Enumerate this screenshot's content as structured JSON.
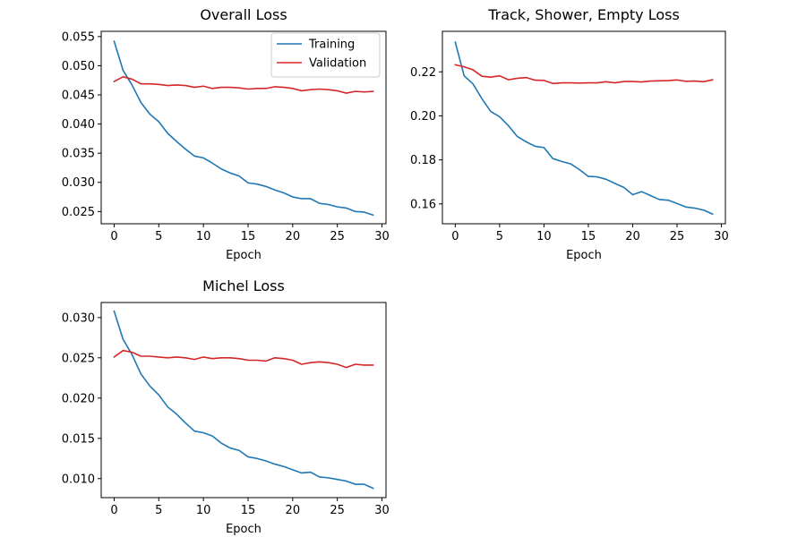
{
  "chart_data": [
    {
      "type": "line",
      "title": "Overall Loss",
      "xlabel": "Epoch",
      "ylabel": "",
      "xlim": [
        -1.45,
        30.45
      ],
      "ylim": [
        0.0229,
        0.0559
      ],
      "xticks": [
        0,
        5,
        10,
        15,
        20,
        25,
        30
      ],
      "xtick_labels": [
        "0",
        "5",
        "10",
        "15",
        "20",
        "25",
        "30"
      ],
      "yticks": [
        0.025,
        0.03,
        0.035,
        0.04,
        0.045,
        0.05,
        0.055
      ],
      "ytick_labels": [
        "0.025",
        "0.030",
        "0.035",
        "0.040",
        "0.045",
        "0.050",
        "0.055"
      ],
      "legend": "top-right",
      "grid": false,
      "x": [
        0,
        1,
        2,
        3,
        4,
        5,
        6,
        7,
        8,
        9,
        10,
        11,
        12,
        13,
        14,
        15,
        16,
        17,
        18,
        19,
        20,
        21,
        22,
        23,
        24,
        25,
        26,
        27,
        28,
        29
      ],
      "series": [
        {
          "name": "Training",
          "color": "#1f77b4",
          "values": [
            0.0542,
            0.0492,
            0.0467,
            0.0437,
            0.0417,
            0.0404,
            0.0384,
            0.037,
            0.0357,
            0.0345,
            0.0342,
            0.0333,
            0.0323,
            0.0316,
            0.0311,
            0.0299,
            0.0297,
            0.0293,
            0.0287,
            0.0282,
            0.0275,
            0.0272,
            0.0272,
            0.0264,
            0.0262,
            0.0258,
            0.0256,
            0.025,
            0.0249,
            0.0244
          ]
        },
        {
          "name": "Validation",
          "color": "#d62728",
          "values": [
            0.0473,
            0.0481,
            0.0477,
            0.0469,
            0.0469,
            0.0468,
            0.0466,
            0.0467,
            0.0466,
            0.0463,
            0.0465,
            0.0461,
            0.0463,
            0.0463,
            0.0462,
            0.046,
            0.0461,
            0.0461,
            0.0464,
            0.0463,
            0.0461,
            0.0457,
            0.0459,
            0.046,
            0.0459,
            0.0457,
            0.0453,
            0.0456,
            0.0455,
            0.0456
          ]
        }
      ]
    },
    {
      "type": "line",
      "title": "Track, Shower, Empty Loss",
      "xlabel": "Epoch",
      "ylabel": "",
      "xlim": [
        -1.45,
        30.45
      ],
      "ylim": [
        0.151,
        0.2384
      ],
      "xticks": [
        0,
        5,
        10,
        15,
        20,
        25,
        30
      ],
      "xtick_labels": [
        "0",
        "5",
        "10",
        "15",
        "20",
        "25",
        "30"
      ],
      "yticks": [
        0.16,
        0.18,
        0.2,
        0.22
      ],
      "ytick_labels": [
        "0.16",
        "0.18",
        "0.20",
        "0.22"
      ],
      "legend": "none",
      "grid": false,
      "x": [
        0,
        1,
        2,
        3,
        4,
        5,
        6,
        7,
        8,
        9,
        10,
        11,
        12,
        13,
        14,
        15,
        16,
        17,
        18,
        19,
        20,
        21,
        22,
        23,
        24,
        25,
        26,
        27,
        28,
        29
      ],
      "series": [
        {
          "name": "",
          "color": "#1f77b4",
          "values": [
            0.2335,
            0.2182,
            0.2145,
            0.2078,
            0.202,
            0.1996,
            0.1955,
            0.1906,
            0.1882,
            0.1862,
            0.1856,
            0.1806,
            0.1793,
            0.1782,
            0.1756,
            0.1725,
            0.1723,
            0.1712,
            0.1693,
            0.1675,
            0.1642,
            0.1656,
            0.1638,
            0.162,
            0.1617,
            0.1602,
            0.1586,
            0.1581,
            0.1572,
            0.1554
          ]
        },
        {
          "name": "",
          "color": "#d62728",
          "values": [
            0.2232,
            0.2223,
            0.2209,
            0.218,
            0.2176,
            0.2182,
            0.2164,
            0.2171,
            0.2174,
            0.2162,
            0.2161,
            0.2147,
            0.215,
            0.215,
            0.2149,
            0.215,
            0.215,
            0.2155,
            0.215,
            0.2156,
            0.2156,
            0.2154,
            0.2158,
            0.2159,
            0.216,
            0.2163,
            0.2157,
            0.2158,
            0.2155,
            0.2164
          ]
        }
      ]
    },
    {
      "type": "line",
      "title": "Michel Loss",
      "xlabel": "Epoch",
      "ylabel": "",
      "xlim": [
        -1.45,
        30.45
      ],
      "ylim": [
        0.00764,
        0.03187
      ],
      "xticks": [
        0,
        5,
        10,
        15,
        20,
        25,
        30
      ],
      "xtick_labels": [
        "0",
        "5",
        "10",
        "15",
        "20",
        "25",
        "30"
      ],
      "yticks": [
        0.01,
        0.015,
        0.02,
        0.025,
        0.03
      ],
      "ytick_labels": [
        "0.010",
        "0.015",
        "0.020",
        "0.025",
        "0.030"
      ],
      "legend": "none",
      "grid": false,
      "x": [
        0,
        1,
        2,
        3,
        4,
        5,
        6,
        7,
        8,
        9,
        10,
        11,
        12,
        13,
        14,
        15,
        16,
        17,
        18,
        19,
        20,
        21,
        22,
        23,
        24,
        25,
        26,
        27,
        28,
        29
      ],
      "series": [
        {
          "name": "",
          "color": "#1f77b4",
          "values": [
            0.0308,
            0.0273,
            0.0254,
            0.023,
            0.0215,
            0.0204,
            0.0189,
            0.018,
            0.0169,
            0.0159,
            0.0157,
            0.0153,
            0.0144,
            0.0138,
            0.0135,
            0.0127,
            0.0125,
            0.0122,
            0.0118,
            0.0115,
            0.0111,
            0.0107,
            0.0108,
            0.0102,
            0.0101,
            0.0099,
            0.0097,
            0.0093,
            0.0093,
            0.0088
          ]
        },
        {
          "name": "",
          "color": "#d62728",
          "values": [
            0.0251,
            0.0259,
            0.0257,
            0.0252,
            0.0252,
            0.0251,
            0.025,
            0.0251,
            0.025,
            0.0248,
            0.0251,
            0.0249,
            0.025,
            0.025,
            0.0249,
            0.0247,
            0.0247,
            0.0246,
            0.025,
            0.0249,
            0.0247,
            0.0242,
            0.0244,
            0.0245,
            0.0244,
            0.0242,
            0.0238,
            0.0242,
            0.0241,
            0.0241
          ]
        }
      ]
    }
  ]
}
